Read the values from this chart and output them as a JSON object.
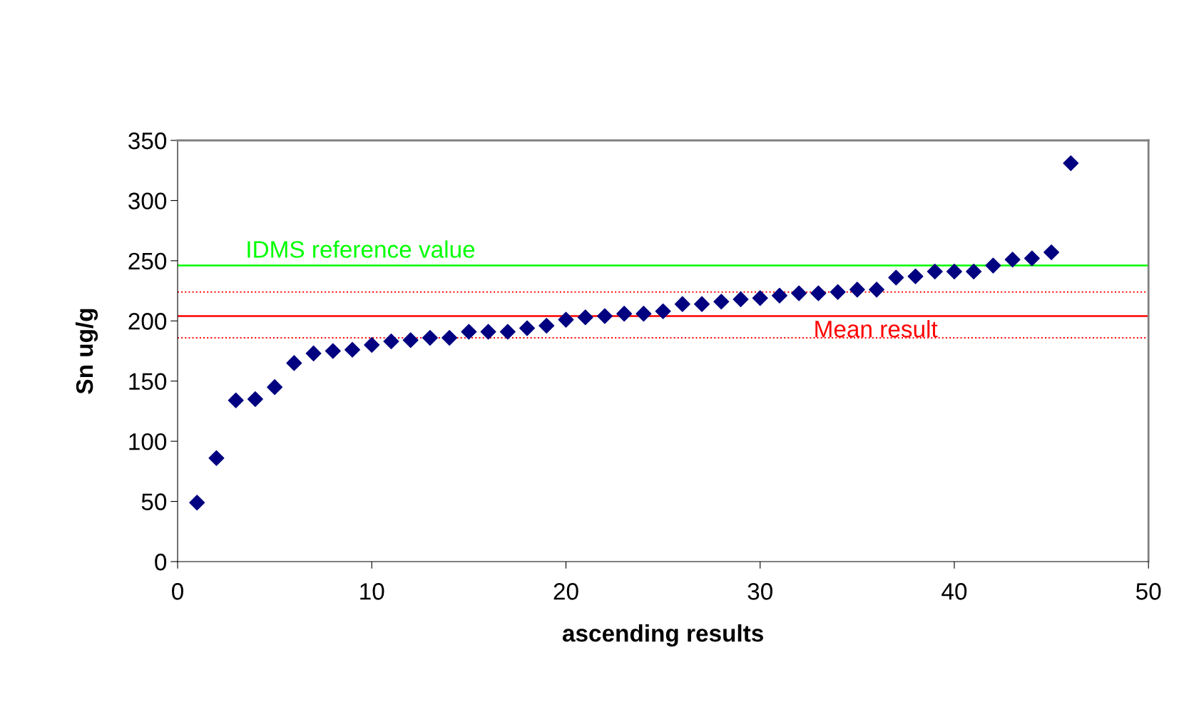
{
  "chart_data": {
    "type": "scatter",
    "xlabel": "ascending results",
    "ylabel": "Sn ug/g",
    "x": [
      1,
      2,
      3,
      4,
      5,
      6,
      7,
      8,
      9,
      10,
      11,
      12,
      13,
      14,
      15,
      16,
      17,
      18,
      19,
      20,
      21,
      22,
      23,
      24,
      25,
      26,
      27,
      28,
      29,
      30,
      31,
      32,
      33,
      34,
      35,
      36,
      37,
      38,
      39,
      40,
      41,
      42,
      43,
      44,
      45,
      46
    ],
    "series": [
      {
        "color": "#000080",
        "values": [
          49,
          86,
          134,
          135,
          145,
          165,
          173,
          175,
          176,
          180,
          183,
          184,
          186,
          186,
          191,
          191,
          191,
          194,
          196,
          201,
          203,
          204,
          206,
          206,
          208,
          214,
          214,
          216,
          218,
          219,
          221,
          223,
          223,
          224,
          226,
          226,
          236,
          237,
          241,
          241,
          241,
          246,
          251,
          252,
          257,
          331
        ]
      }
    ],
    "marker": "diamond",
    "xlim": [
      0,
      50
    ],
    "xticks": [
      0,
      10,
      20,
      30,
      40,
      50
    ],
    "ylim": [
      0,
      350
    ],
    "yticks": [
      0,
      50,
      100,
      150,
      200,
      250,
      300,
      350
    ],
    "grid": false,
    "legend": false,
    "ref_lines": [
      {
        "axis": "y",
        "value": 246,
        "label": "IDMS reference value",
        "color": "#00ff00",
        "line_style": "solid"
      },
      {
        "axis": "y",
        "value": 204,
        "label": "Mean result",
        "color": "#ff0000",
        "line_style": "solid"
      },
      {
        "axis": "y",
        "value": 224,
        "label": null,
        "color": "#ff0000",
        "line_style": "dotted"
      },
      {
        "axis": "y",
        "value": 186,
        "label": null,
        "color": "#ff0000",
        "line_style": "dotted"
      }
    ]
  }
}
